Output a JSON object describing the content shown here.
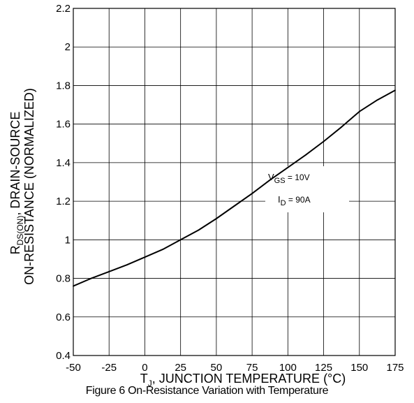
{
  "chart_data": {
    "type": "line",
    "caption": "Figure 6 On-Resistance Variation with Temperature",
    "xlabel": {
      "main": "T",
      "sub": "J",
      "rest": ", JUNCTION TEMPERATURE (°C)"
    },
    "ylabel": {
      "line1_main": "R",
      "line1_sub": "DS(ON)",
      "line1_rest": ", DRAIN-SOURCE",
      "line2": "ON-RESISTANCE (NORMALIZED)"
    },
    "xlim": [
      -50,
      175
    ],
    "ylim": [
      0.4,
      2.2
    ],
    "xticks": [
      -50,
      -25,
      0,
      25,
      50,
      75,
      100,
      125,
      150,
      175
    ],
    "yticks": [
      0.4,
      0.6,
      0.8,
      1,
      1.2,
      1.4,
      1.6,
      1.8,
      2,
      2.2
    ],
    "ytick_labels": [
      "0.4",
      "0.6",
      "0.8",
      "1",
      "1.2",
      "1.4",
      "1.6",
      "1.8",
      "2",
      "2.2"
    ],
    "grid": true,
    "series": [
      {
        "x": [
          -50,
          -37.5,
          -25,
          -12.5,
          0,
          12.5,
          25,
          37.5,
          50,
          62.5,
          75,
          87.5,
          100,
          112.5,
          125,
          137.5,
          150,
          162.5,
          175
        ],
        "y": [
          0.76,
          0.8,
          0.835,
          0.87,
          0.91,
          0.95,
          1.0,
          1.05,
          1.11,
          1.175,
          1.24,
          1.31,
          1.375,
          1.44,
          1.51,
          1.585,
          1.665,
          1.725,
          1.775
        ]
      }
    ],
    "annotations": {
      "vgs": {
        "main": "V",
        "sub": "GS",
        "rest": " = 10V"
      },
      "id": {
        "main": "I",
        "sub": "D",
        "rest": " = 90A"
      }
    }
  }
}
